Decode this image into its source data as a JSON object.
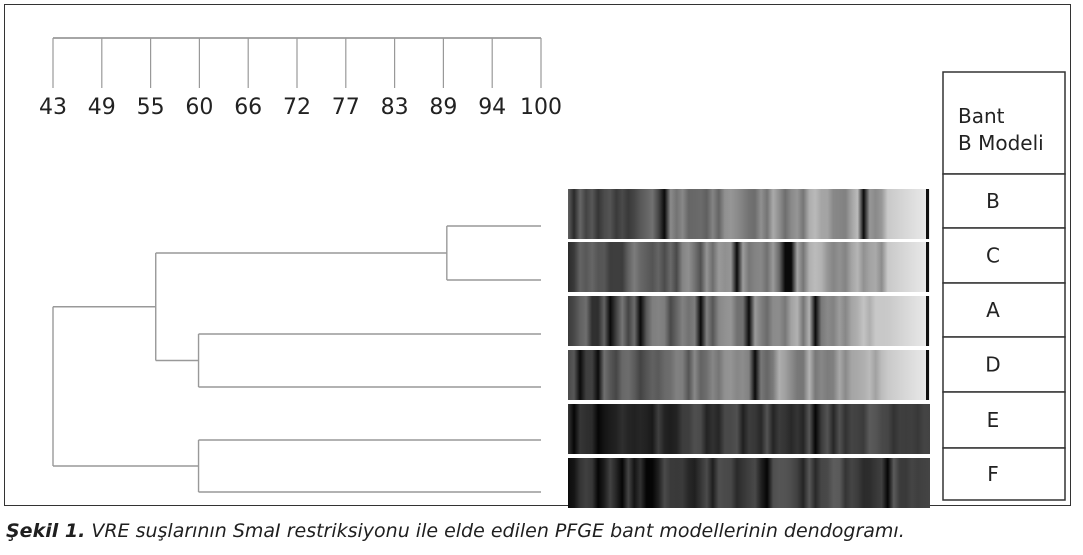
{
  "scale": {
    "ticks": [
      "43",
      "49",
      "55",
      "60",
      "66",
      "72",
      "77",
      "83",
      "89",
      "94",
      "100"
    ]
  },
  "table": {
    "header_line1": "Bant",
    "header_line2": "B Modeli",
    "rows": [
      "B",
      "C",
      "A",
      "D",
      "E",
      "F"
    ]
  },
  "dendrogram": {
    "leaves": [
      "B",
      "C",
      "A",
      "D",
      "E",
      "F"
    ],
    "merges": [
      {
        "children": [
          "B",
          "C"
        ],
        "similarity": 89
      },
      {
        "children": [
          "A",
          "D"
        ],
        "similarity": 60
      },
      {
        "children": [
          "E",
          "F"
        ],
        "similarity": 60
      },
      {
        "children": [
          "B-C",
          "A-D"
        ],
        "similarity": 55
      },
      {
        "children": [
          "B-C-A-D",
          "E-F"
        ],
        "similarity": 43
      }
    ]
  },
  "gel": {
    "lanes": [
      {
        "label": "B",
        "shade": "gray"
      },
      {
        "label": "C",
        "shade": "gray"
      },
      {
        "label": "A",
        "shade": "gray"
      },
      {
        "label": "D",
        "shade": "gray"
      },
      {
        "label": "E",
        "shade": "dark"
      },
      {
        "label": "F",
        "shade": "dark"
      }
    ]
  },
  "caption": {
    "lead": "Şekil 1.",
    "text": " VRE suşlarının SmaI restriksiyonu ile elde edilen PFGE bant modellerinin dendogramı."
  }
}
